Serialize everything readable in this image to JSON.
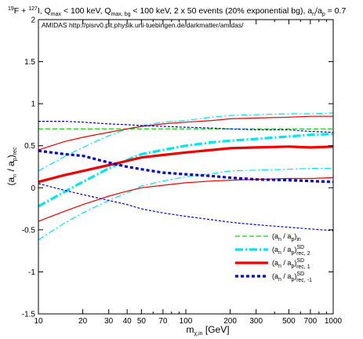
{
  "title_parts": {
    "p1": "19",
    "p2": "F + ",
    "p3": "127",
    "p4": "I, Q",
    "p5": "max",
    "p6": " < 100 keV, Q",
    "p7": "max, bg",
    "p8": " < 100 keV, 2 x 50 events (20% exponential bg), a",
    "p9": "n",
    "p10": "/a",
    "p11": "p",
    "p12": " = 0.7"
  },
  "inner_label": "AMIDAS   http://pisrv0.pit.physik.uni-tuebingen.de/darkmatter/amidas/",
  "axis_label_parts": {
    "x_main": "m",
    "x_sub": "χ,in",
    "x_unit": " [GeV]",
    "y_a": "(a",
    "y_n": "n",
    "y_slash": " / a",
    "y_p": "p",
    "y_close": ")",
    "y_rec": "rec"
  },
  "colors": {
    "input": "#33dd33",
    "rec2": "#00e5ee",
    "rec1": "#ee0000",
    "recm1": "#0000cc"
  },
  "chart_data": {
    "type": "line",
    "x_scale": "log",
    "xlim": [
      10,
      1000
    ],
    "ylim": [
      -1.5,
      2
    ],
    "x_ticks": [
      "10",
      "20",
      "30",
      "40",
      "50",
      "70",
      "100",
      "200",
      "300",
      "500",
      "700",
      "1000"
    ],
    "y_ticks": [
      "-1.5",
      "-1",
      "-0.5",
      "0",
      "0.5",
      "1",
      "1.5",
      "2"
    ],
    "grid": false,
    "legend_position": "bottom-right",
    "x": [
      10,
      15,
      20,
      30,
      40,
      50,
      70,
      100,
      150,
      200,
      300,
      500,
      700,
      1000
    ],
    "series": [
      {
        "key": "input",
        "legend": {
          "a": "(a",
          "n": "n",
          "slash": " / a",
          "p": "p",
          "close": ")",
          "sup": "",
          "sub": "in"
        },
        "style": "dashed",
        "values": [
          0.7,
          0.7,
          0.7,
          0.7,
          0.7,
          0.7,
          0.7,
          0.7,
          0.7,
          0.7,
          0.7,
          0.7,
          0.7,
          0.7
        ]
      },
      {
        "key": "rec2",
        "legend": {
          "a": "(a",
          "n": "n",
          "slash": " / a",
          "p": "p",
          "close": ")",
          "sup": "SD",
          "sub": "rec, 2"
        },
        "style": "dashdot-thick",
        "values": [
          -0.22,
          -0.05,
          0.07,
          0.23,
          0.33,
          0.4,
          0.45,
          0.5,
          0.54,
          0.56,
          0.58,
          0.61,
          0.63,
          0.64
        ],
        "band_upper": [
          0.2,
          0.37,
          0.48,
          0.62,
          0.7,
          0.74,
          0.78,
          0.8,
          0.84,
          0.86,
          0.87,
          0.88,
          0.88,
          0.89
        ],
        "band_lower": [
          -0.62,
          -0.42,
          -0.3,
          -0.15,
          -0.06,
          0.02,
          0.08,
          0.13,
          0.17,
          0.2,
          0.21,
          0.22,
          0.23,
          0.23
        ]
      },
      {
        "key": "rec1",
        "legend": {
          "a": "(a",
          "n": "n",
          "slash": " / a",
          "p": "p",
          "close": ")",
          "sup": "SD",
          "sub": "rec, 1"
        },
        "style": "solid-thick",
        "values": [
          0.07,
          0.15,
          0.2,
          0.27,
          0.32,
          0.36,
          0.39,
          0.42,
          0.45,
          0.47,
          0.48,
          0.49,
          0.48,
          0.49
        ],
        "band_upper": [
          0.45,
          0.55,
          0.6,
          0.66,
          0.7,
          0.73,
          0.76,
          0.78,
          0.8,
          0.82,
          0.83,
          0.84,
          0.85,
          0.85
        ],
        "band_lower": [
          -0.4,
          -0.28,
          -0.2,
          -0.1,
          -0.04,
          0.0,
          0.03,
          0.06,
          0.08,
          0.09,
          0.1,
          0.11,
          0.11,
          0.12
        ]
      },
      {
        "key": "recm1",
        "legend": {
          "a": "(a",
          "n": "n",
          "slash": " / a",
          "p": "p",
          "close": ")",
          "sup": "SD",
          "sub": "rec, -1"
        },
        "style": "dashed-thick",
        "values": [
          0.44,
          0.4,
          0.38,
          0.3,
          0.25,
          0.22,
          0.18,
          0.16,
          0.14,
          0.12,
          0.1,
          0.09,
          0.08,
          0.07
        ],
        "band_upper": [
          0.79,
          0.79,
          0.78,
          0.76,
          0.75,
          0.74,
          0.73,
          0.72,
          0.71,
          0.7,
          0.69,
          0.69,
          0.67,
          0.66
        ],
        "band_lower": [
          0.05,
          -0.03,
          -0.08,
          -0.15,
          -0.2,
          -0.25,
          -0.3,
          -0.34,
          -0.38,
          -0.41,
          -0.44,
          -0.47,
          -0.49,
          -0.51
        ]
      }
    ]
  }
}
